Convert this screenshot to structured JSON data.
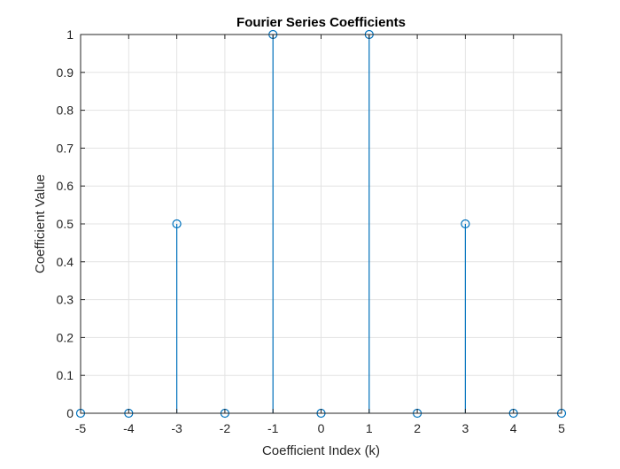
{
  "chart_data": {
    "type": "stem",
    "title": "Fourier Series Coefficients",
    "xlabel": "Coefficient Index (k)",
    "ylabel": "Coefficient Value",
    "x": [
      -5,
      -4,
      -3,
      -2,
      -1,
      0,
      1,
      2,
      3,
      4,
      5
    ],
    "y": [
      0,
      0,
      0.5,
      0,
      1,
      0,
      1,
      0,
      0.5,
      0,
      0
    ],
    "xlim": [
      -5,
      5
    ],
    "ylim": [
      0,
      1
    ],
    "xticks": [
      "-5",
      "-4",
      "-3",
      "-2",
      "-1",
      "0",
      "1",
      "2",
      "3",
      "4",
      "5"
    ],
    "yticks": [
      "0",
      "0.1",
      "0.2",
      "0.3",
      "0.4",
      "0.5",
      "0.6",
      "0.7",
      "0.8",
      "0.9",
      "1"
    ],
    "grid": true,
    "marker": "open-circle",
    "series_color": "#0072BD",
    "grid_color": "#e3e3e3",
    "axis_color": "#262626"
  }
}
